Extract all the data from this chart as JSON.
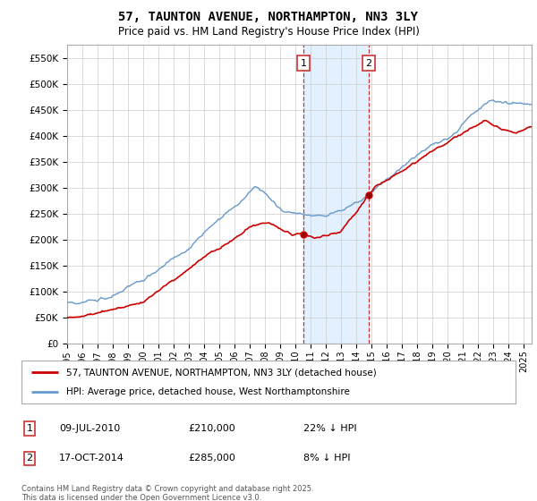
{
  "title": "57, TAUNTON AVENUE, NORTHAMPTON, NN3 3LY",
  "subtitle": "Price paid vs. HM Land Registry's House Price Index (HPI)",
  "ylim": [
    0,
    575000
  ],
  "yticks": [
    0,
    50000,
    100000,
    150000,
    200000,
    250000,
    300000,
    350000,
    400000,
    450000,
    500000,
    550000
  ],
  "xstart": 1995,
  "xend": 2025,
  "sale1_date": 2010.53,
  "sale1_price": 210000,
  "sale2_date": 2014.8,
  "sale2_price": 285000,
  "sale1_date_str": "09-JUL-2010",
  "sale2_date_str": "17-OCT-2014",
  "sale1_hpi_str": "22% ↓ HPI",
  "sale2_hpi_str": "8% ↓ HPI",
  "sale1_price_str": "£210,000",
  "sale2_price_str": "£285,000",
  "red_color": "#cc0000",
  "blue_color": "#6699cc",
  "shade_color": "#ddeeff",
  "grid_color": "#cccccc",
  "bg_color": "#ffffff",
  "legend_label_red": "57, TAUNTON AVENUE, NORTHAMPTON, NN3 3LY (detached house)",
  "legend_label_blue": "HPI: Average price, detached house, West Northamptonshire",
  "footnote": "Contains HM Land Registry data © Crown copyright and database right 2025.\nThis data is licensed under the Open Government Licence v3.0."
}
